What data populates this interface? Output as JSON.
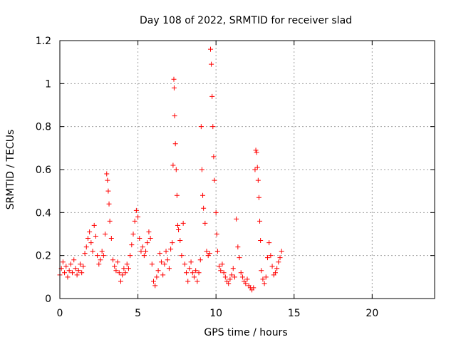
{
  "chart_data": {
    "type": "scatter",
    "title": "Day 108 of 2022, SRMTID for receiver slad",
    "xlabel": "GPS time / hours",
    "ylabel": "SRMTID / TECUs",
    "xlim": [
      0,
      24
    ],
    "ylim": [
      0,
      1.2
    ],
    "xticks": [
      0,
      5,
      10,
      15,
      20
    ],
    "yticks": [
      0,
      0.2,
      0.4,
      0.6,
      0.8,
      1,
      1.2
    ],
    "xtick_labels": [
      "0",
      "5",
      "10",
      "15",
      "20"
    ],
    "ytick_labels": [
      "0",
      "0.2",
      "0.4",
      "0.6",
      "0.8",
      "1",
      "1.2"
    ],
    "grid": true,
    "marker": "+",
    "color": "#ff0000",
    "series": [
      {
        "name": "SRMTID",
        "points": [
          [
            0.0,
            0.11
          ],
          [
            0.1,
            0.14
          ],
          [
            0.2,
            0.17
          ],
          [
            0.3,
            0.12
          ],
          [
            0.4,
            0.15
          ],
          [
            0.5,
            0.1
          ],
          [
            0.6,
            0.13
          ],
          [
            0.7,
            0.16
          ],
          [
            0.8,
            0.12
          ],
          [
            0.9,
            0.18
          ],
          [
            1.0,
            0.14
          ],
          [
            1.1,
            0.11
          ],
          [
            1.2,
            0.13
          ],
          [
            1.3,
            0.16
          ],
          [
            1.4,
            0.12
          ],
          [
            1.5,
            0.15
          ],
          [
            1.6,
            0.21
          ],
          [
            1.7,
            0.24
          ],
          [
            1.8,
            0.28
          ],
          [
            1.9,
            0.31
          ],
          [
            2.0,
            0.26
          ],
          [
            2.1,
            0.22
          ],
          [
            2.2,
            0.34
          ],
          [
            2.3,
            0.29
          ],
          [
            2.4,
            0.2
          ],
          [
            2.5,
            0.16
          ],
          [
            2.6,
            0.18
          ],
          [
            2.7,
            0.22
          ],
          [
            2.8,
            0.2
          ],
          [
            2.9,
            0.3
          ],
          [
            3.0,
            0.58
          ],
          [
            3.05,
            0.55
          ],
          [
            3.1,
            0.5
          ],
          [
            3.15,
            0.44
          ],
          [
            3.2,
            0.36
          ],
          [
            3.3,
            0.28
          ],
          [
            3.4,
            0.18
          ],
          [
            3.5,
            0.15
          ],
          [
            3.6,
            0.13
          ],
          [
            3.7,
            0.17
          ],
          [
            3.8,
            0.12
          ],
          [
            3.9,
            0.08
          ],
          [
            4.0,
            0.11
          ],
          [
            4.1,
            0.14
          ],
          [
            4.2,
            0.12
          ],
          [
            4.3,
            0.16
          ],
          [
            4.4,
            0.14
          ],
          [
            4.5,
            0.2
          ],
          [
            4.6,
            0.25
          ],
          [
            4.7,
            0.3
          ],
          [
            4.8,
            0.36
          ],
          [
            4.9,
            0.41
          ],
          [
            5.0,
            0.38
          ],
          [
            5.1,
            0.28
          ],
          [
            5.2,
            0.22
          ],
          [
            5.3,
            0.24
          ],
          [
            5.4,
            0.2
          ],
          [
            5.5,
            0.22
          ],
          [
            5.6,
            0.26
          ],
          [
            5.7,
            0.31
          ],
          [
            5.8,
            0.28
          ],
          [
            5.9,
            0.16
          ],
          [
            6.0,
            0.08
          ],
          [
            6.1,
            0.06
          ],
          [
            6.2,
            0.1
          ],
          [
            6.3,
            0.13
          ],
          [
            6.4,
            0.21
          ],
          [
            6.5,
            0.17
          ],
          [
            6.6,
            0.11
          ],
          [
            6.7,
            0.16
          ],
          [
            6.8,
            0.22
          ],
          [
            6.9,
            0.18
          ],
          [
            7.0,
            0.14
          ],
          [
            7.1,
            0.23
          ],
          [
            7.2,
            0.26
          ],
          [
            7.25,
            0.62
          ],
          [
            7.3,
            1.02
          ],
          [
            7.32,
            0.98
          ],
          [
            7.35,
            0.85
          ],
          [
            7.4,
            0.72
          ],
          [
            7.45,
            0.6
          ],
          [
            7.5,
            0.48
          ],
          [
            7.55,
            0.34
          ],
          [
            7.6,
            0.32
          ],
          [
            7.7,
            0.27
          ],
          [
            7.8,
            0.2
          ],
          [
            7.9,
            0.35
          ],
          [
            8.0,
            0.16
          ],
          [
            8.1,
            0.12
          ],
          [
            8.2,
            0.08
          ],
          [
            8.3,
            0.14
          ],
          [
            8.4,
            0.17
          ],
          [
            8.5,
            0.12
          ],
          [
            8.6,
            0.1
          ],
          [
            8.7,
            0.13
          ],
          [
            8.8,
            0.08
          ],
          [
            8.9,
            0.12
          ],
          [
            9.0,
            0.18
          ],
          [
            9.05,
            0.8
          ],
          [
            9.1,
            0.6
          ],
          [
            9.15,
            0.48
          ],
          [
            9.2,
            0.42
          ],
          [
            9.3,
            0.35
          ],
          [
            9.4,
            0.22
          ],
          [
            9.5,
            0.2
          ],
          [
            9.6,
            0.21
          ],
          [
            9.65,
            1.16
          ],
          [
            9.7,
            1.09
          ],
          [
            9.75,
            0.94
          ],
          [
            9.8,
            0.8
          ],
          [
            9.85,
            0.66
          ],
          [
            9.9,
            0.55
          ],
          [
            10.0,
            0.4
          ],
          [
            10.05,
            0.3
          ],
          [
            10.1,
            0.22
          ],
          [
            10.2,
            0.15
          ],
          [
            10.3,
            0.13
          ],
          [
            10.4,
            0.16
          ],
          [
            10.5,
            0.12
          ],
          [
            10.6,
            0.1
          ],
          [
            10.7,
            0.08
          ],
          [
            10.8,
            0.07
          ],
          [
            10.9,
            0.09
          ],
          [
            11.0,
            0.11
          ],
          [
            11.1,
            0.14
          ],
          [
            11.2,
            0.1
          ],
          [
            11.3,
            0.37
          ],
          [
            11.4,
            0.24
          ],
          [
            11.5,
            0.19
          ],
          [
            11.6,
            0.12
          ],
          [
            11.7,
            0.1
          ],
          [
            11.8,
            0.08
          ],
          [
            11.9,
            0.07
          ],
          [
            12.0,
            0.09
          ],
          [
            12.1,
            0.06
          ],
          [
            12.2,
            0.05
          ],
          [
            12.3,
            0.04
          ],
          [
            12.4,
            0.05
          ],
          [
            12.5,
            0.6
          ],
          [
            12.55,
            0.69
          ],
          [
            12.6,
            0.68
          ],
          [
            12.65,
            0.61
          ],
          [
            12.7,
            0.55
          ],
          [
            12.75,
            0.47
          ],
          [
            12.8,
            0.36
          ],
          [
            12.85,
            0.27
          ],
          [
            12.9,
            0.13
          ],
          [
            13.0,
            0.09
          ],
          [
            13.1,
            0.07
          ],
          [
            13.2,
            0.1
          ],
          [
            13.3,
            0.19
          ],
          [
            13.4,
            0.26
          ],
          [
            13.5,
            0.2
          ],
          [
            13.6,
            0.15
          ],
          [
            13.7,
            0.11
          ],
          [
            13.8,
            0.12
          ],
          [
            13.9,
            0.14
          ],
          [
            14.0,
            0.17
          ],
          [
            14.1,
            0.19
          ],
          [
            14.2,
            0.22
          ]
        ]
      }
    ]
  }
}
